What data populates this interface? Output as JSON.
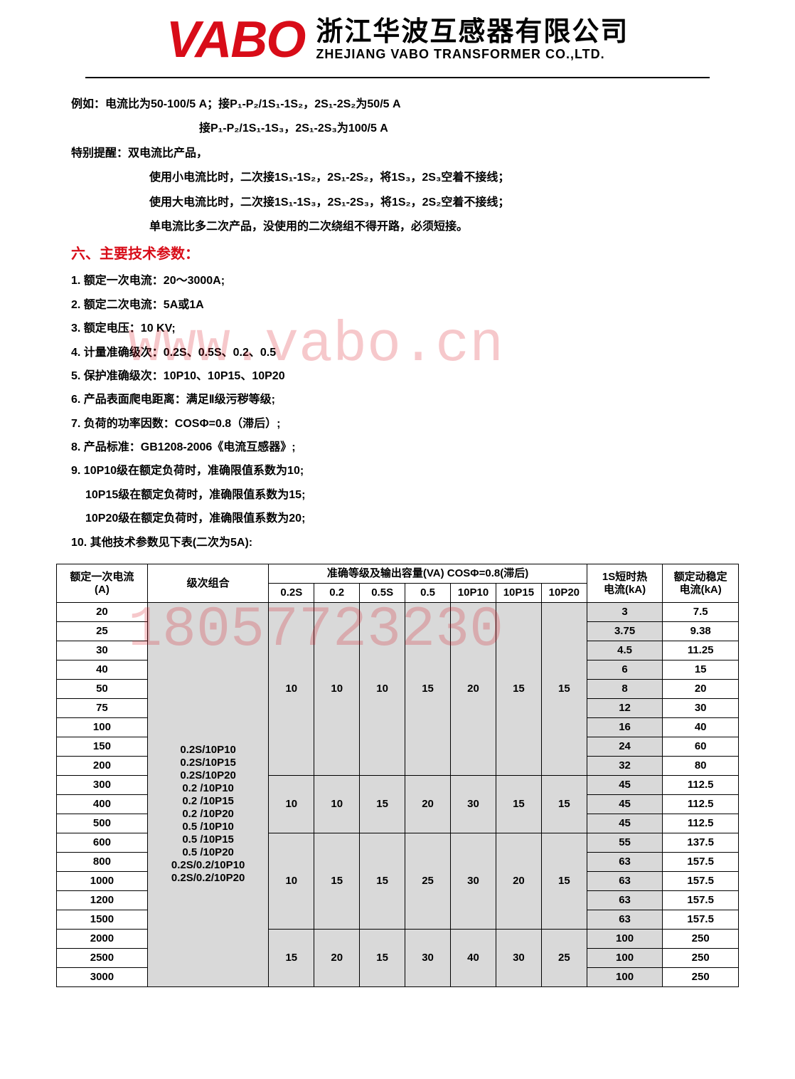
{
  "header": {
    "logo_text": "VABO",
    "company_cn": "浙江华波互感器有限公司",
    "company_en": "ZHEJIANG VABO TRANSFORMER CO.,LTD."
  },
  "watermarks": {
    "wm1": "www.vabo.cn",
    "wm2": "18057723230"
  },
  "example": {
    "line1": "例如：电流比为50-100/5 A；接P₁-P₂/1S₁-1S₂，2S₁-2S₂为50/5 A",
    "line2": "接P₁-P₂/1S₁-1S₃，2S₁-2S₃为100/5 A"
  },
  "reminder": {
    "title": "特别提醒：双电流比产品，",
    "l1": "使用小电流比时，二次接1S₁-1S₂，2S₁-2S₂，将1S₃，2S₃空着不接线；",
    "l2": "使用大电流比时，二次接1S₁-1S₃，2S₁-2S₃，将1S₂，2S₂空着不接线；",
    "l3": "单电流比多二次产品，没使用的二次绕组不得开路，必须短接。"
  },
  "section6_title": "六、主要技术参数：",
  "params": {
    "p1": "1. 额定一次电流：20～3000A;",
    "p2": "2. 额定二次电流：5A或1A",
    "p3": "3. 额定电压：10 KV;",
    "p4": "4. 计量准确级次：0.2S、0.5S、0.2、0.5",
    "p5": "5. 保护准确级次：10P10、10P15、10P20",
    "p6": "6. 产品表面爬电距离：满足Ⅱ级污秽等级;",
    "p7": "7. 负荷的功率因数：COSΦ=0.8（滞后）;",
    "p8": "8. 产品标准：GB1208-2006《电流互感器》;",
    "p9": "9. 10P10级在额定负荷时，准确限值系数为10;",
    "p9a": "10P15级在额定负荷时，准确限值系数为15;",
    "p9b": "10P20级在额定负荷时，准确限值系数为20;",
    "p10": "10. 其他技术参数见下表(二次为5A):"
  },
  "table": {
    "h_current": "额定一次电流\n(A)",
    "h_level": "级次组合",
    "h_accuracy": "准确等级及输出容量(VA)   COSΦ=0.8(滞后)",
    "h_short": "1S短时热\n电流(kA)",
    "h_dyn": "额定动稳定\n电流(kA)",
    "sub_cols": [
      "0.2S",
      "0.2",
      "0.5S",
      "0.5",
      "10P10",
      "10P15",
      "10P20"
    ],
    "level_combos": [
      "0.2S/10P10",
      "0.2S/10P15",
      "0.2S/10P20",
      "0.2 /10P10",
      "0.2 /10P15",
      "0.2 /10P20",
      "0.5 /10P10",
      "0.5 /10P15",
      "0.5 /10P20",
      "0.2S/0.2/10P10",
      "0.2S/0.2/10P20"
    ],
    "group1_vals": [
      "10",
      "10",
      "10",
      "15",
      "20",
      "15",
      "15"
    ],
    "group2_vals": [
      "10",
      "10",
      "15",
      "20",
      "30",
      "15",
      "15"
    ],
    "group3_vals": [
      "10",
      "15",
      "15",
      "25",
      "30",
      "20",
      "15"
    ],
    "group4_vals": [
      "15",
      "20",
      "15",
      "30",
      "40",
      "30",
      "25"
    ],
    "rows": [
      {
        "a": "20",
        "short": "3",
        "dyn": "7.5"
      },
      {
        "a": "25",
        "short": "3.75",
        "dyn": "9.38"
      },
      {
        "a": "30",
        "short": "4.5",
        "dyn": "11.25"
      },
      {
        "a": "40",
        "short": "6",
        "dyn": "15"
      },
      {
        "a": "50",
        "short": "8",
        "dyn": "20"
      },
      {
        "a": "75",
        "short": "12",
        "dyn": "30"
      },
      {
        "a": "100",
        "short": "16",
        "dyn": "40"
      },
      {
        "a": "150",
        "short": "24",
        "dyn": "60"
      },
      {
        "a": "200",
        "short": "32",
        "dyn": "80"
      },
      {
        "a": "300",
        "short": "45",
        "dyn": "112.5"
      },
      {
        "a": "400",
        "short": "45",
        "dyn": "112.5"
      },
      {
        "a": "500",
        "short": "45",
        "dyn": "112.5"
      },
      {
        "a": "600",
        "short": "55",
        "dyn": "137.5"
      },
      {
        "a": "800",
        "short": "63",
        "dyn": "157.5"
      },
      {
        "a": "1000",
        "short": "63",
        "dyn": "157.5"
      },
      {
        "a": "1200",
        "short": "63",
        "dyn": "157.5"
      },
      {
        "a": "1500",
        "short": "63",
        "dyn": "157.5"
      },
      {
        "a": "2000",
        "short": "100",
        "dyn": "250"
      },
      {
        "a": "2500",
        "short": "100",
        "dyn": "250"
      },
      {
        "a": "3000",
        "short": "100",
        "dyn": "250"
      }
    ]
  },
  "colors": {
    "brand": "#d80c18",
    "grey": "#d9d9d9"
  }
}
